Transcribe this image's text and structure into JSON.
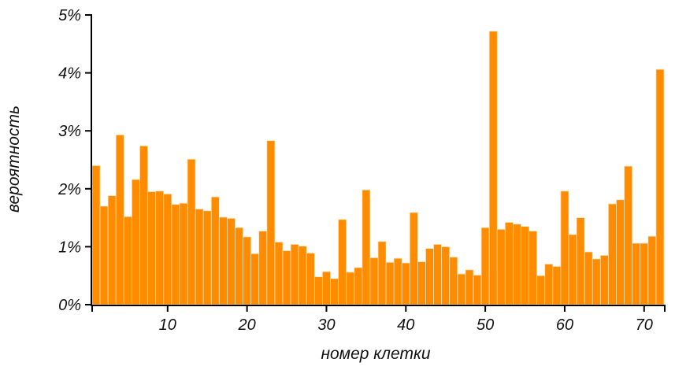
{
  "chart_data": {
    "type": "bar",
    "xlabel": "номер клетки",
    "ylabel": "вероятность",
    "bar_color": "#FF8C00",
    "bar_edge_color": "#FFE0B0",
    "x": [
      1,
      2,
      3,
      4,
      5,
      6,
      7,
      8,
      9,
      10,
      11,
      12,
      13,
      14,
      15,
      16,
      17,
      18,
      19,
      20,
      21,
      22,
      23,
      24,
      25,
      26,
      27,
      28,
      29,
      30,
      31,
      32,
      33,
      34,
      35,
      36,
      37,
      38,
      39,
      40,
      41,
      42,
      43,
      44,
      45,
      46,
      47,
      48,
      49,
      50,
      51,
      52,
      53,
      54,
      55,
      56,
      57,
      58,
      59,
      60,
      61,
      62,
      63,
      64,
      65,
      66,
      67,
      68,
      69,
      70,
      71,
      72
    ],
    "values": [
      2.4,
      1.7,
      1.88,
      2.93,
      1.52,
      2.16,
      2.74,
      1.95,
      1.96,
      1.91,
      1.73,
      1.75,
      2.51,
      1.65,
      1.62,
      1.86,
      1.51,
      1.49,
      1.33,
      1.17,
      0.88,
      1.27,
      2.83,
      1.08,
      0.93,
      1.04,
      1.01,
      0.89,
      0.48,
      0.57,
      0.45,
      1.47,
      0.56,
      0.64,
      1.98,
      0.81,
      1.09,
      0.73,
      0.8,
      0.72,
      1.59,
      0.74,
      0.97,
      1.04,
      1.0,
      0.82,
      0.53,
      0.6,
      0.51,
      1.33,
      4.72,
      1.3,
      1.42,
      1.39,
      1.35,
      1.27,
      0.5,
      0.7,
      0.66,
      1.96,
      1.21,
      1.5,
      0.91,
      0.79,
      0.85,
      1.74,
      1.81,
      2.39,
      1.06,
      1.06,
      1.18,
      4.06
    ],
    "value_unit": "%",
    "xlim": [
      0.5,
      72.5
    ],
    "ylim": [
      0,
      5
    ],
    "x_ticks": [
      10,
      20,
      30,
      40,
      50,
      60,
      70
    ],
    "x_tick_labels": [
      "10",
      "20",
      "30",
      "40",
      "50",
      "60",
      "70"
    ],
    "y_ticks": [
      0,
      1,
      2,
      3,
      4,
      5
    ],
    "y_tick_labels": [
      "0%",
      "1%",
      "2%",
      "3%",
      "4%",
      "5%"
    ],
    "grid": false,
    "legend": "none"
  }
}
